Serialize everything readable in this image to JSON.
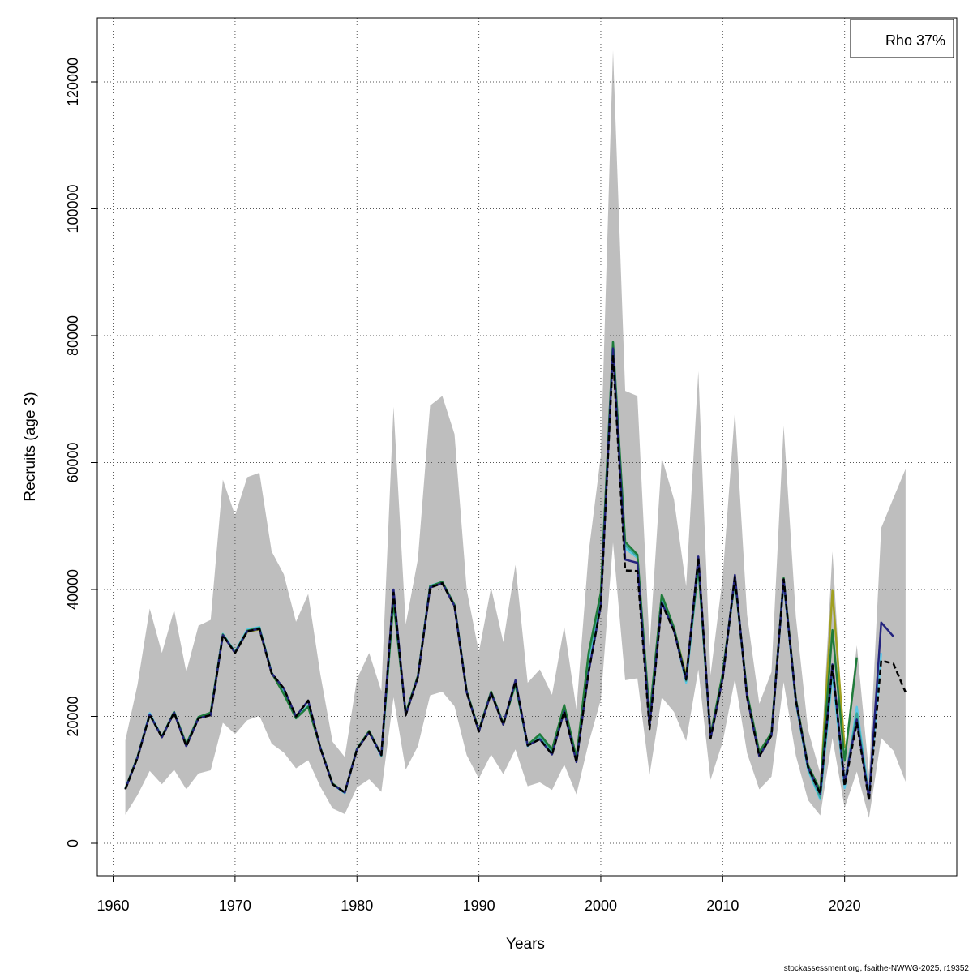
{
  "chart_data": {
    "type": "line",
    "xlabel": "Years",
    "ylabel": "Recruits (age 3)",
    "annotation": "Rho 37%",
    "footer": "stockassessment.org, fsaithe-NWWG-2025, r19352",
    "xlim": [
      1958.7,
      2029.2
    ],
    "ylim": [
      -5112,
      130096
    ],
    "xticks": [
      1960,
      1970,
      1980,
      1990,
      2000,
      2010,
      2020
    ],
    "yticks": [
      0,
      20000,
      40000,
      60000,
      80000,
      100000,
      120000
    ],
    "grid": true,
    "x": [
      1961,
      1962,
      1963,
      1964,
      1965,
      1966,
      1967,
      1968,
      1969,
      1970,
      1971,
      1972,
      1973,
      1974,
      1975,
      1976,
      1977,
      1978,
      1979,
      1980,
      1981,
      1982,
      1983,
      1984,
      1985,
      1986,
      1987,
      1988,
      1989,
      1990,
      1991,
      1992,
      1993,
      1994,
      1995,
      1996,
      1997,
      1998,
      1999,
      2000,
      2001,
      2002,
      2003,
      2004,
      2005,
      2006,
      2007,
      2008,
      2009,
      2010,
      2011,
      2012,
      2013,
      2014,
      2015,
      2016,
      2017,
      2018,
      2019,
      2020,
      2021,
      2022,
      2023,
      2024,
      2025
    ],
    "band": {
      "color": "#bebebe",
      "upper": [
        16200,
        25000,
        37000,
        30000,
        36800,
        27000,
        34300,
        35200,
        57300,
        51700,
        57700,
        58400,
        46000,
        42400,
        34900,
        39300,
        26600,
        16000,
        13600,
        25900,
        30000,
        24000,
        68800,
        34500,
        44800,
        69000,
        70500,
        64500,
        40000,
        30100,
        40300,
        31700,
        43900,
        25300,
        27400,
        23400,
        34200,
        21100,
        45800,
        61000,
        125000,
        71300,
        70500,
        31000,
        60800,
        54200,
        40500,
        74400,
        26500,
        42000,
        68200,
        36000,
        22000,
        27000,
        65800,
        35700,
        17900,
        11000,
        46000,
        14000,
        31200,
        11000,
        49700,
        54400,
        59000
      ],
      "lower": [
        4500,
        7600,
        11400,
        9300,
        11600,
        8500,
        11000,
        11500,
        19000,
        17200,
        19400,
        20100,
        15700,
        14300,
        11800,
        13100,
        8900,
        5500,
        4600,
        8800,
        10100,
        8100,
        23000,
        11600,
        15300,
        23300,
        23900,
        21600,
        13900,
        10200,
        14000,
        10900,
        14800,
        9000,
        9600,
        8400,
        12400,
        7700,
        15800,
        22600,
        47400,
        25700,
        26000,
        10800,
        23000,
        20700,
        16100,
        27400,
        10000,
        16000,
        25900,
        14200,
        8500,
        10500,
        25400,
        13800,
        6800,
        4400,
        16600,
        5600,
        11300,
        4000,
        16600,
        14600,
        9700
      ]
    },
    "series": [
      {
        "color": "#a0a020",
        "values": [
          8500,
          13500,
          20300,
          16700,
          20600,
          15500,
          19800,
          20400,
          32800,
          30000,
          33300,
          33700,
          26800,
          23600,
          19900,
          21600,
          15000,
          9300,
          8000,
          14800,
          17500,
          13900,
          38000,
          20300,
          26300,
          40300,
          41000,
          37400,
          23800,
          17600,
          23700,
          18700,
          25000,
          15500,
          17000,
          14600,
          21500,
          13300,
          29800,
          39200,
          78000,
          46500,
          45000,
          19800,
          39000,
          33800,
          26500,
          43500,
          16900,
          26700,
          41500,
          23500,
          14300,
          17300,
          41600,
          22600,
          12200,
          8100,
          39800,
          15000,
          null,
          null,
          null,
          null,
          null
        ]
      },
      {
        "color": "#5bc8e8",
        "values": [
          8600,
          13600,
          20500,
          16800,
          20700,
          15600,
          19900,
          20500,
          33000,
          30200,
          33700,
          34100,
          26900,
          23800,
          19800,
          21700,
          15100,
          9300,
          7900,
          14900,
          17600,
          13700,
          38000,
          20500,
          26300,
          40600,
          41200,
          37500,
          23900,
          17700,
          23800,
          18800,
          25000,
          15300,
          16900,
          14500,
          21000,
          13200,
          29000,
          38500,
          78500,
          46500,
          45000,
          19500,
          38800,
          33800,
          25300,
          43500,
          16700,
          26500,
          41500,
          23300,
          14000,
          17200,
          41300,
          22200,
          11500,
          6900,
          26500,
          8700,
          21500,
          7500,
          30000,
          null,
          null
        ]
      },
      {
        "color": "#3aa89a",
        "values": [
          8600,
          13600,
          20300,
          16800,
          20700,
          15500,
          19900,
          20500,
          32900,
          30100,
          33500,
          34000,
          26900,
          23600,
          19700,
          21600,
          15100,
          9300,
          8000,
          14900,
          17600,
          13800,
          38500,
          20400,
          26300,
          40500,
          41100,
          37500,
          23900,
          17700,
          23800,
          18800,
          25200,
          15400,
          16800,
          14300,
          21000,
          13000,
          29500,
          38800,
          79000,
          47000,
          45200,
          19800,
          39000,
          33800,
          25600,
          43800,
          16800,
          26600,
          41700,
          23400,
          14200,
          17300,
          41500,
          22400,
          11800,
          7200,
          27500,
          9600,
          20500,
          7300,
          null,
          null,
          null
        ]
      },
      {
        "color": "#1e7b3a",
        "values": [
          8600,
          13600,
          20200,
          16800,
          20700,
          15600,
          19900,
          20600,
          32900,
          30100,
          33500,
          33900,
          26900,
          23500,
          19700,
          21500,
          15100,
          9400,
          8000,
          14900,
          17700,
          13900,
          38200,
          20500,
          26400,
          40500,
          41200,
          37600,
          24000,
          17800,
          23900,
          18900,
          25100,
          15500,
          17200,
          14800,
          21800,
          13500,
          30000,
          39500,
          79000,
          47500,
          45500,
          20000,
          39200,
          34000,
          26000,
          43800,
          17000,
          26800,
          41800,
          23600,
          14400,
          17400,
          41800,
          22800,
          12300,
          8300,
          33600,
          13000,
          29300,
          null,
          null,
          null,
          null
        ]
      },
      {
        "color": "#23237e",
        "values": [
          8500,
          13500,
          20300,
          16700,
          20600,
          15300,
          19700,
          20200,
          32800,
          30000,
          33400,
          33800,
          26800,
          24400,
          20000,
          22500,
          15000,
          9300,
          8000,
          14800,
          17500,
          13900,
          40000,
          20200,
          26200,
          40300,
          41000,
          37400,
          23800,
          17600,
          23700,
          18700,
          25700,
          15400,
          16400,
          14000,
          20800,
          12800,
          27000,
          37500,
          78000,
          44700,
          44200,
          18500,
          38000,
          33500,
          25800,
          45200,
          16500,
          26000,
          42300,
          23000,
          13700,
          17000,
          41600,
          22500,
          12000,
          7800,
          28200,
          9500,
          19500,
          7000,
          34800,
          32600,
          null
        ]
      },
      {
        "color": "#000000",
        "dashed": true,
        "values": [
          8500,
          13500,
          20300,
          16700,
          20600,
          15300,
          19700,
          20200,
          32800,
          30000,
          33400,
          33800,
          26800,
          24400,
          20000,
          22500,
          15000,
          9300,
          8000,
          14800,
          17500,
          13900,
          39500,
          20200,
          26200,
          40300,
          41000,
          37400,
          23800,
          17600,
          23700,
          18700,
          25500,
          15400,
          16400,
          14000,
          20800,
          12800,
          27000,
          37500,
          77000,
          43000,
          42900,
          18000,
          37800,
          33500,
          25800,
          45000,
          16500,
          26000,
          42000,
          23000,
          13700,
          17000,
          41600,
          22500,
          12000,
          7800,
          28000,
          9000,
          19000,
          6700,
          28800,
          28300,
          23800
        ]
      }
    ]
  }
}
